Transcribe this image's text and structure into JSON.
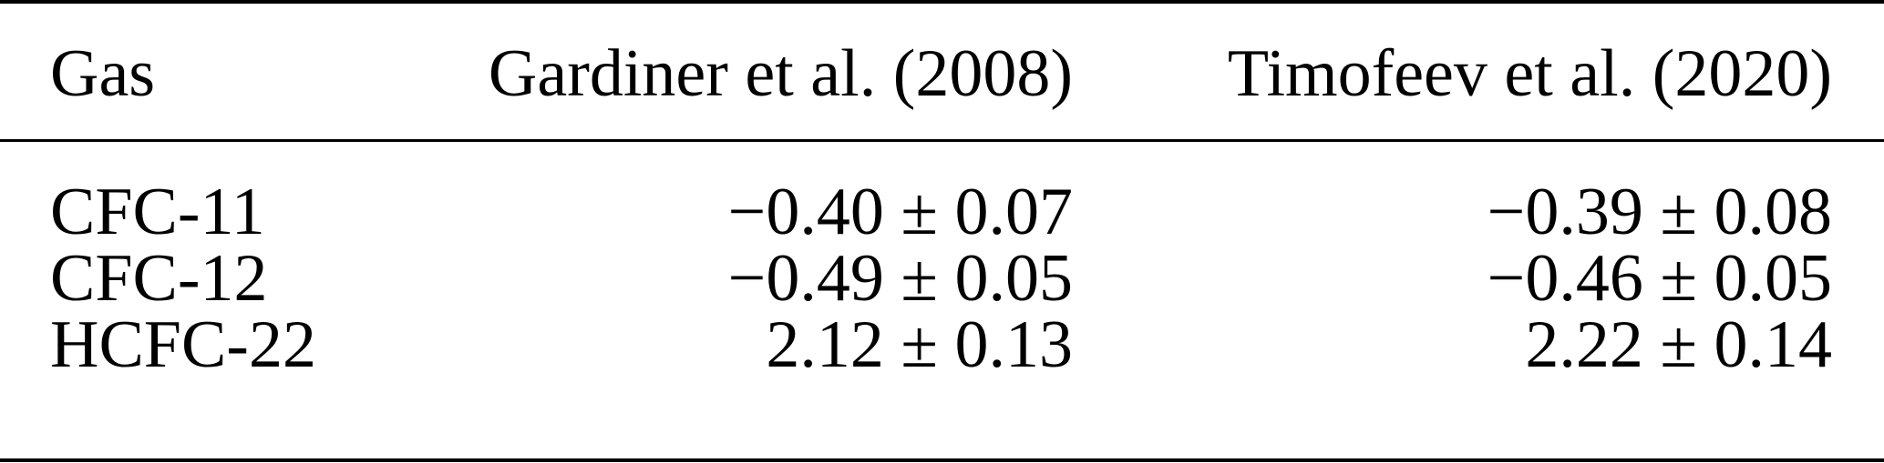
{
  "table": {
    "headers": [
      "Gas",
      "Gardiner et al. (2008)",
      "Timofeev et al. (2020)"
    ],
    "rows": [
      [
        "CFC-11",
        "−0.40 ± 0.07",
        "−0.39 ± 0.08"
      ],
      [
        "CFC-12",
        "−0.49 ± 0.05",
        "−0.46 ± 0.05"
      ],
      [
        "HCFC-22",
        "2.12 ± 0.13",
        "2.22 ± 0.14"
      ]
    ]
  }
}
